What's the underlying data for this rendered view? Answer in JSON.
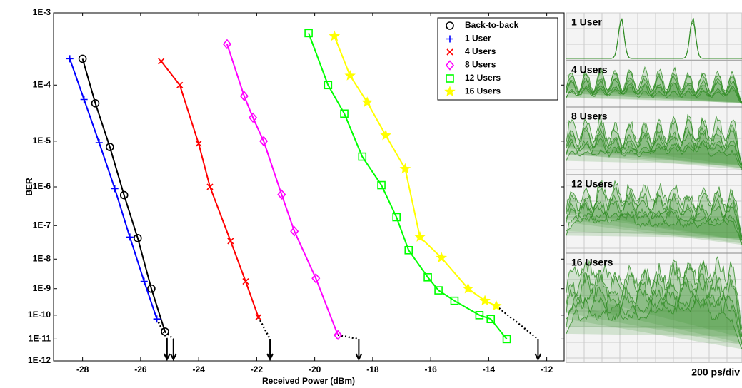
{
  "chart_data": {
    "type": "line",
    "xlabel": "Received Power (dBm)",
    "ylabel": "BER",
    "yscale": "neglog",
    "xlim": [
      -29,
      -11.4
    ],
    "xticks": [
      -28,
      -26,
      -24,
      -22,
      -20,
      -18,
      -16,
      -14,
      -12
    ],
    "ylim": [
      0.001,
      1e-12
    ],
    "yticks": [
      {
        "value": 0.001,
        "label": "1E-3"
      },
      {
        "value": 0.0001,
        "label": "1E-4"
      },
      {
        "value": 1e-05,
        "label": "1E-5"
      },
      {
        "value": 1e-06,
        "label": "1E-6"
      },
      {
        "value": 1e-07,
        "label": "1E-7"
      },
      {
        "value": 1e-08,
        "label": "1E-8"
      },
      {
        "value": 1e-09,
        "label": "1E-9"
      },
      {
        "value": 1e-10,
        "label": "1E-10"
      },
      {
        "value": 1e-11,
        "label": "1E-11"
      },
      {
        "value": 1e-12,
        "label": "1E-12"
      }
    ],
    "legend": "upper right",
    "extrapolation_ber": 1e-11,
    "series": [
      {
        "name": "Back-to-back",
        "color": "#000000",
        "marker": "circle",
        "extrapolation": -24.87,
        "x": [
          -28,
          -27.56,
          -27.06,
          -26.57,
          -26.1,
          -25.63,
          -25.16
        ],
        "values": [
          0.00025,
          5e-05,
          7.6e-06,
          6.3e-07,
          4.4e-08,
          1e-09,
          2.1e-11
        ]
      },
      {
        "name": "1 User",
        "color": "#0000ff",
        "marker": "plus",
        "extrapolation": -25.09,
        "x": [
          -28.44,
          -27.95,
          -27.43,
          -26.89,
          -26.37,
          -25.88,
          -25.44
        ],
        "values": [
          0.00025,
          5.8e-05,
          9.3e-06,
          9.1e-07,
          4.7e-08,
          1.8e-09,
          7e-11
        ]
      },
      {
        "name": "4 Users",
        "color": "#ff0000",
        "marker": "x",
        "extrapolation": -21.54,
        "x": [
          -25.29,
          -24.65,
          -24,
          -23.61,
          -22.9,
          -22.38,
          -21.94
        ],
        "values": [
          0.00023,
          0.0001,
          8.9e-06,
          1e-06,
          3.6e-08,
          1.8e-09,
          8.3e-11
        ]
      },
      {
        "name": "8 Users",
        "color": "#ff00ff",
        "marker": "diamond",
        "extrapolation": -18.48,
        "x": [
          -23.02,
          -22.43,
          -22.13,
          -21.76,
          -21.14,
          -20.7,
          -19.96,
          -19.2
        ],
        "values": [
          0.0004,
          6.6e-05,
          2.8e-05,
          1e-05,
          6.5e-07,
          6.9e-08,
          2.3e-09,
          1.5e-11
        ]
      },
      {
        "name": "12 Users",
        "color": "#00ff00",
        "marker": "square",
        "extrapolation": null,
        "x": [
          -20.21,
          -19.54,
          -18.98,
          -18.36,
          -17.7,
          -17.18,
          -16.76,
          -16.1,
          -15.73,
          -15.18,
          -14.32,
          -13.93,
          -13.38
        ],
        "values": [
          0.00056,
          0.0001,
          3.3e-05,
          4.8e-06,
          1.1e-06,
          1.7e-07,
          1.9e-08,
          2.5e-09,
          8.7e-10,
          3.6e-10,
          1e-10,
          7e-11,
          1e-11
        ]
      },
      {
        "name": "16 Users",
        "color": "#ffff00",
        "marker": "star",
        "extrapolation": -12.3,
        "x": [
          -19.32,
          -18.78,
          -18.19,
          -17.55,
          -16.88,
          -16.37,
          -15.63,
          -14.71,
          -14.13,
          -13.74
        ],
        "values": [
          0.00051,
          0.00014,
          5.2e-05,
          1.3e-05,
          2.6e-06,
          4.7e-08,
          1.1e-08,
          1e-09,
          3.6e-10,
          2.3e-10
        ]
      }
    ]
  },
  "eye_panels": {
    "labels": [
      "1 User",
      "4 Users",
      "8 Users",
      "12 Users",
      "16 Users"
    ],
    "scale_label": "200 ps/div"
  }
}
